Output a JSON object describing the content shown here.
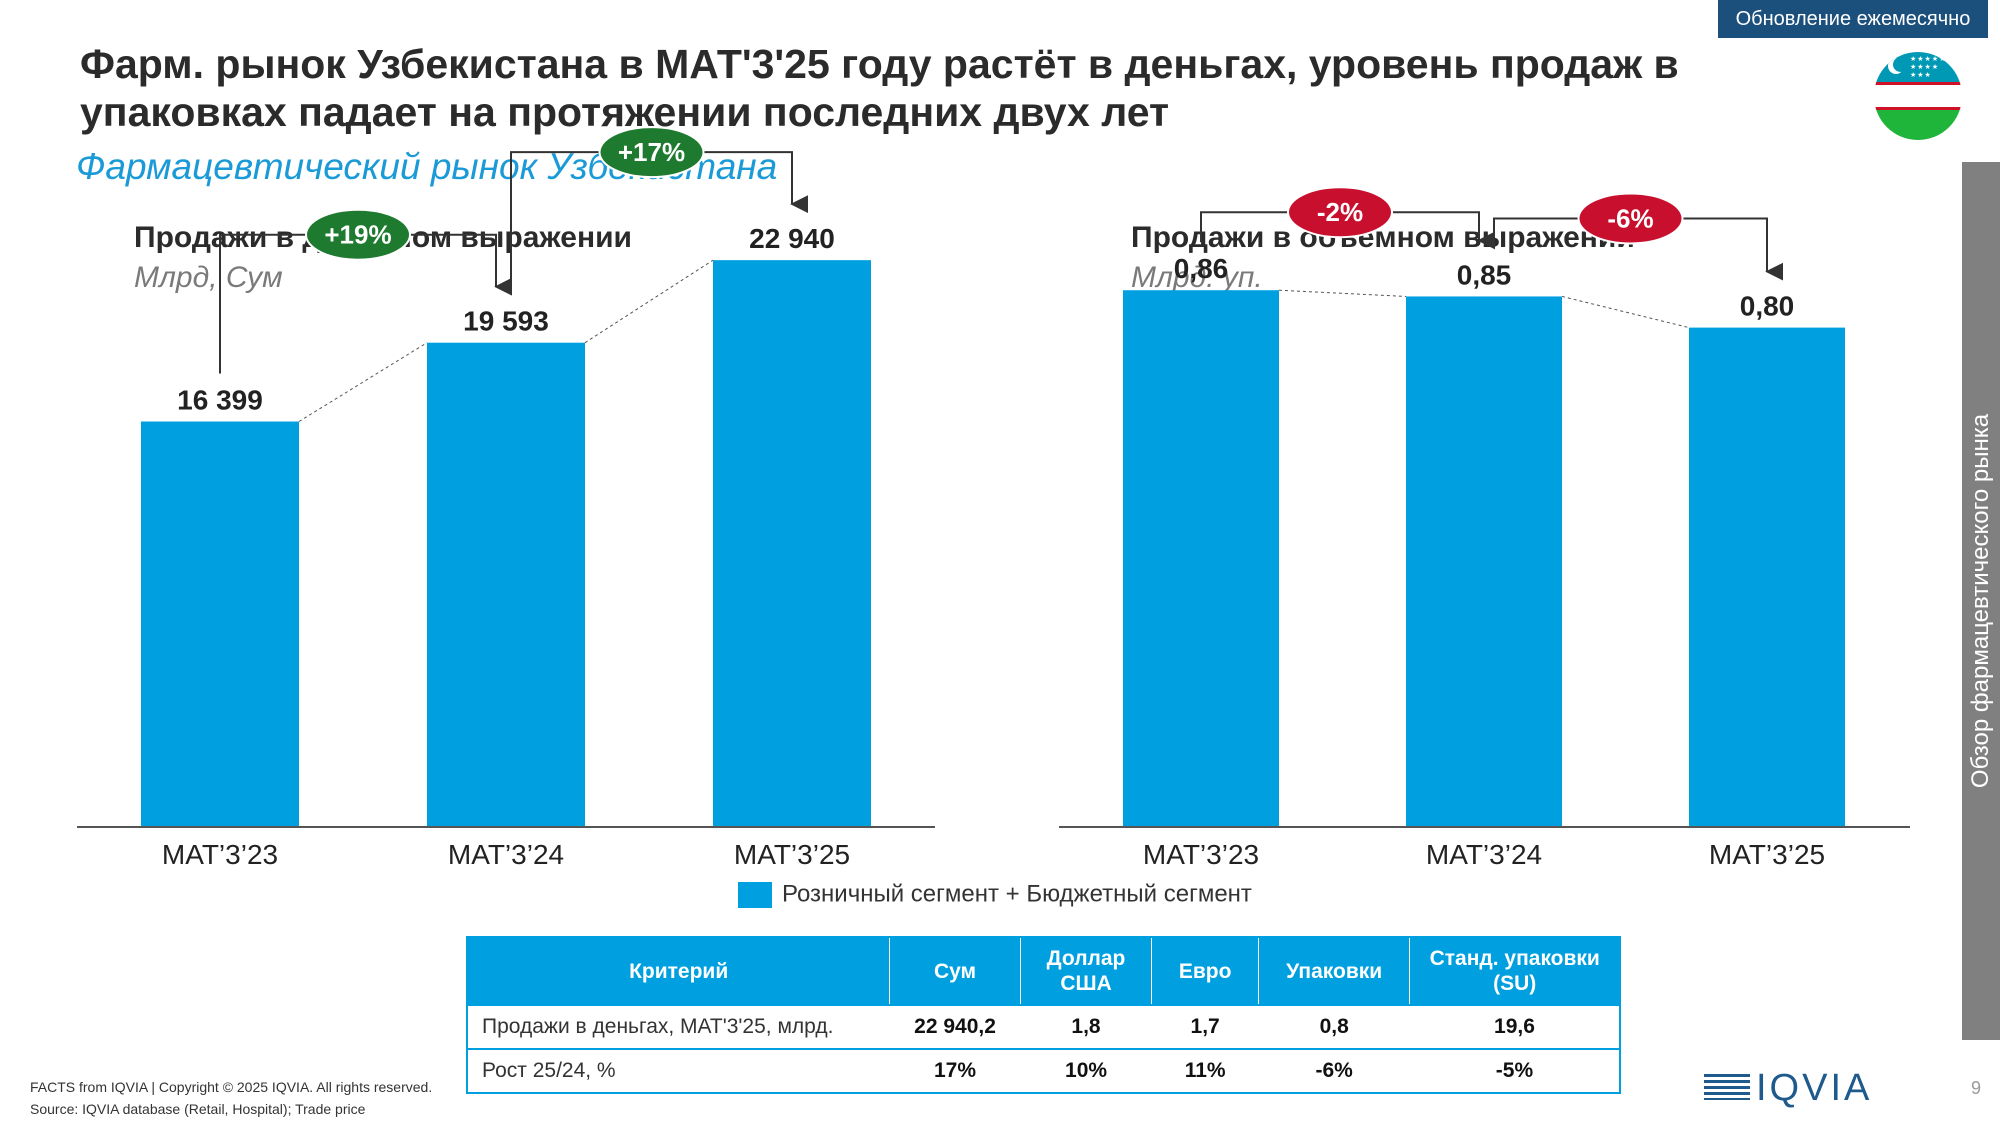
{
  "header": {
    "badge": "Обновление ежемесячно",
    "title": "Фарм. рынок Узбекистана в МАТ'3'25 году растёт в деньгах, уровень продаж в упаковках падает на протяжении последних двух лет",
    "subtitle": "Фармацевтический рынок Узбекистана",
    "sidebar": "Обзор фармацевтического рынка"
  },
  "colors": {
    "bar": "#00a0e0",
    "green": "#1e7a2e",
    "red": "#c8102e",
    "navy": "#1b4f7c"
  },
  "chart_data": [
    {
      "type": "bar",
      "title": "Продажи в денежном выражении",
      "unit": "Млрд, Сум",
      "categories": [
        "MAT’3’23",
        "MAT’3’24",
        "MAT’3’25"
      ],
      "values": [
        16399,
        19593,
        22940
      ],
      "labels": [
        "16 399",
        "19 593",
        "22 940"
      ],
      "ylim": [
        0,
        30000
      ],
      "growth": [
        {
          "from": 0,
          "to": 1,
          "label": "+19%",
          "color": "green"
        },
        {
          "from": 1,
          "to": 2,
          "label": "+17%",
          "color": "green"
        }
      ]
    },
    {
      "type": "bar",
      "title": "Продажи в объёмном выражении",
      "unit": "Млрд. уп.",
      "categories": [
        "MAT’3’23",
        "MAT’3’24",
        "MAT’3’25"
      ],
      "values": [
        0.86,
        0.85,
        0.8
      ],
      "labels": [
        "0,86",
        "0,85",
        "0,80"
      ],
      "ylim": [
        0,
        1.0
      ],
      "growth": [
        {
          "from": 0,
          "to": 1,
          "label": "-2%",
          "color": "red"
        },
        {
          "from": 1,
          "to": 2,
          "label": "-6%",
          "color": "red"
        }
      ]
    }
  ],
  "legend": {
    "label": "Розничный сегмент + Бюджетный сегмент"
  },
  "table": {
    "headers": [
      "Критерий",
      "Сум",
      "Доллар США",
      "Евро",
      "Упаковки",
      "Станд. упаковки (SU)"
    ],
    "rows": [
      [
        "Продажи в деньгах,  МАТ'3'25, млрд.",
        "22 940,2",
        "1,8",
        "1,7",
        "0,8",
        "19,6"
      ],
      [
        "Рост 25/24, %",
        "17%",
        "10%",
        "11%",
        "-6%",
        "-5%"
      ]
    ]
  },
  "footer": {
    "line1": "FACTS from IQVIA | Copyright © 2025 IQVIA. All rights reserved.",
    "line2": "Source: IQVIA database (Retail, Hospital); Trade price"
  },
  "logo": "IQVIA",
  "page_number": "9"
}
